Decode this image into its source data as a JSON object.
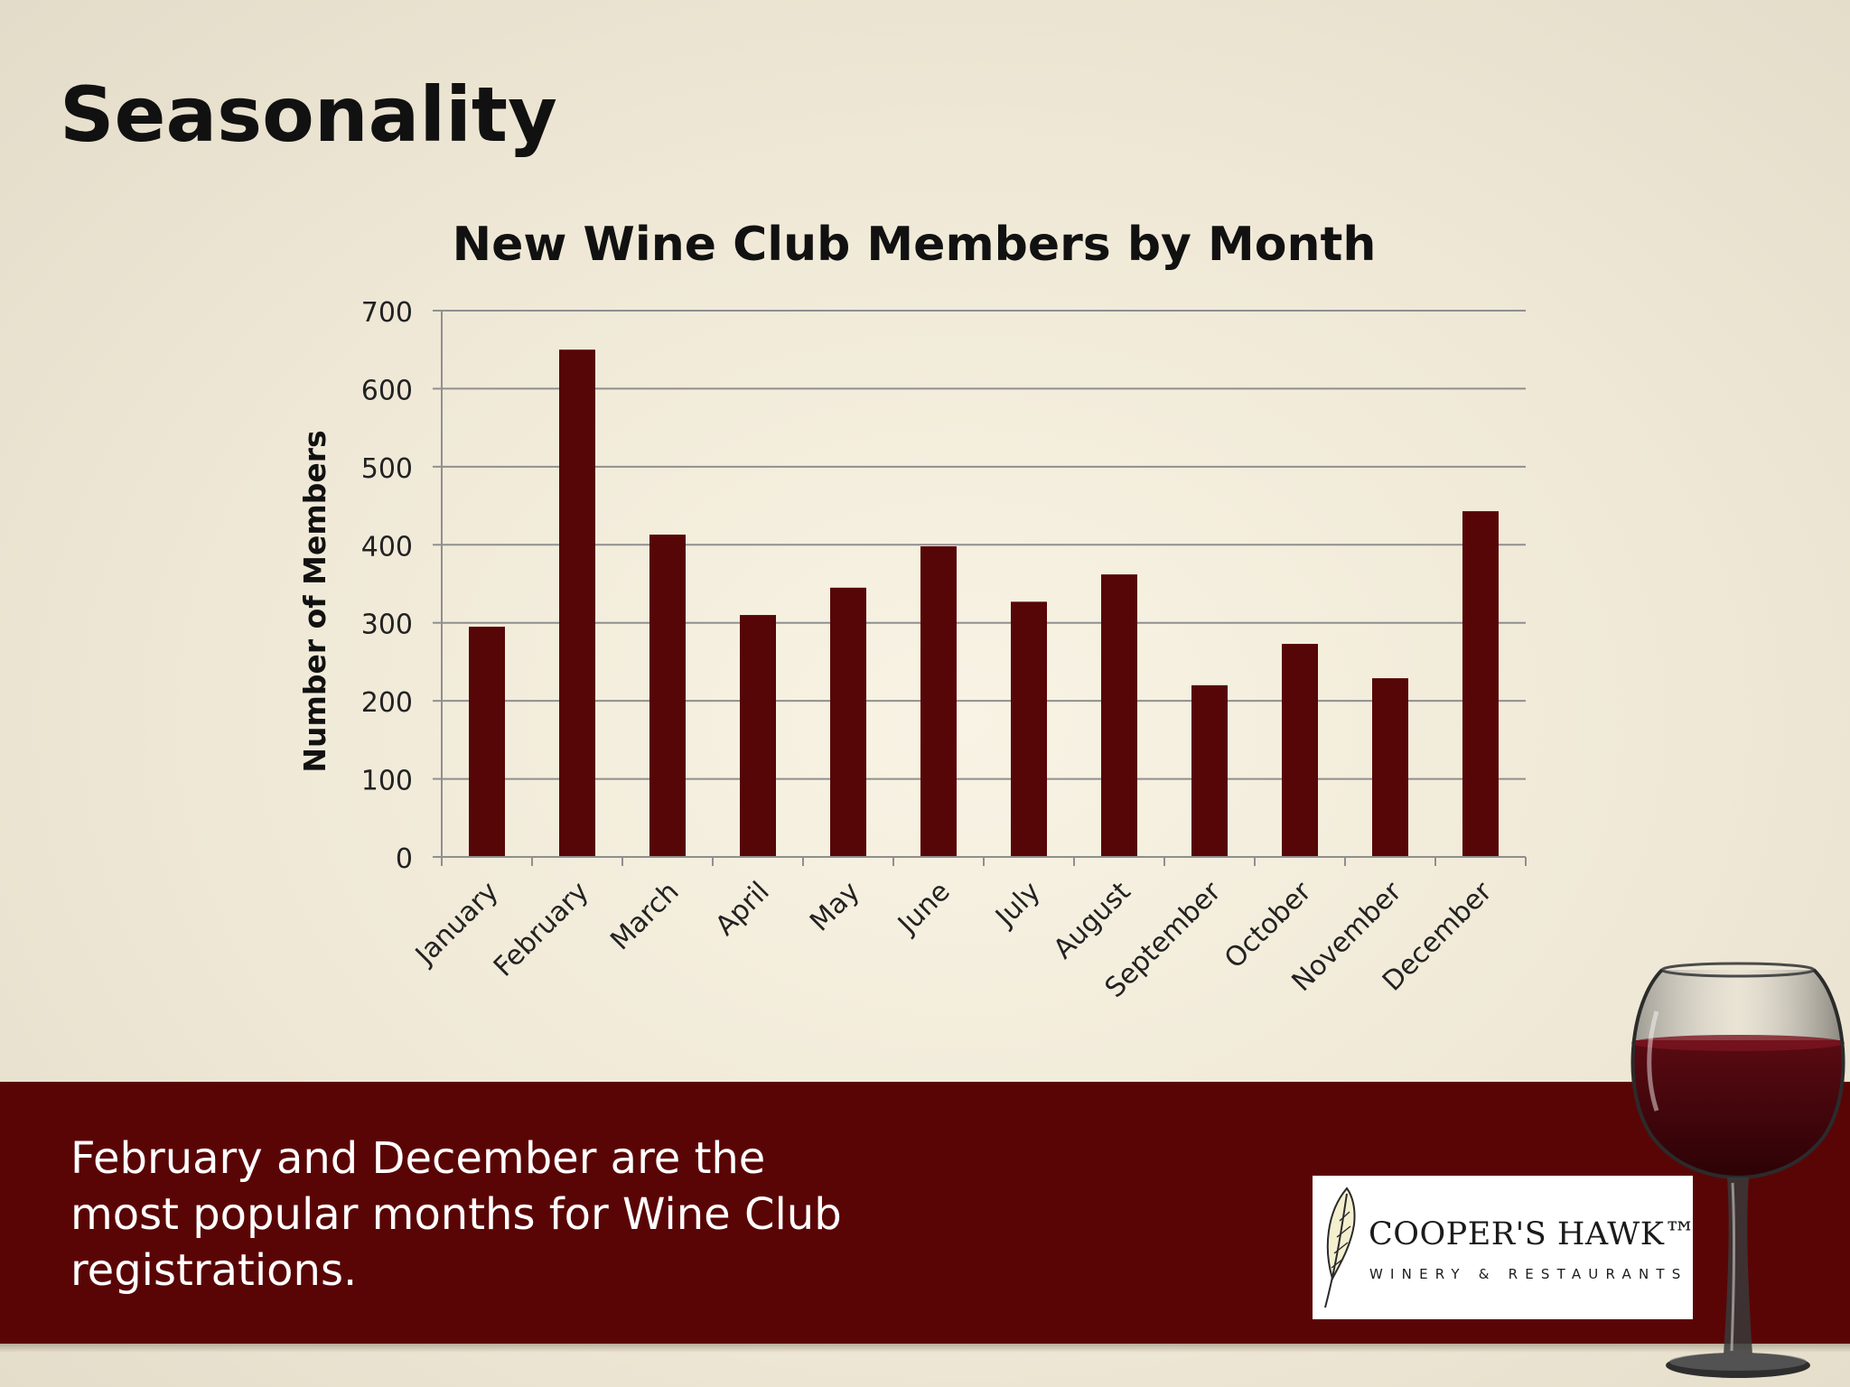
{
  "slide": {
    "title": "Seasonality",
    "caption": "February and December are the most popular months for Wine Club registrations."
  },
  "logo": {
    "name": "COOPER'S HAWK™",
    "tagline": "WINERY & RESTAURANTS"
  },
  "colors": {
    "bar": "#560606",
    "band": "#5a0505",
    "gridline": "#8f8f8f"
  },
  "chart_data": {
    "type": "bar",
    "title": "New Wine Club Members by Month",
    "xlabel": "",
    "ylabel": "Number of Members",
    "ylim": [
      0,
      700
    ],
    "yticks": [
      0,
      100,
      200,
      300,
      400,
      500,
      600,
      700
    ],
    "grid": true,
    "legend": "none",
    "categories": [
      "January",
      "February",
      "March",
      "April",
      "May",
      "June",
      "July",
      "August",
      "September",
      "October",
      "November",
      "December"
    ],
    "values": [
      295,
      650,
      413,
      310,
      345,
      398,
      327,
      362,
      220,
      273,
      229,
      443
    ]
  }
}
